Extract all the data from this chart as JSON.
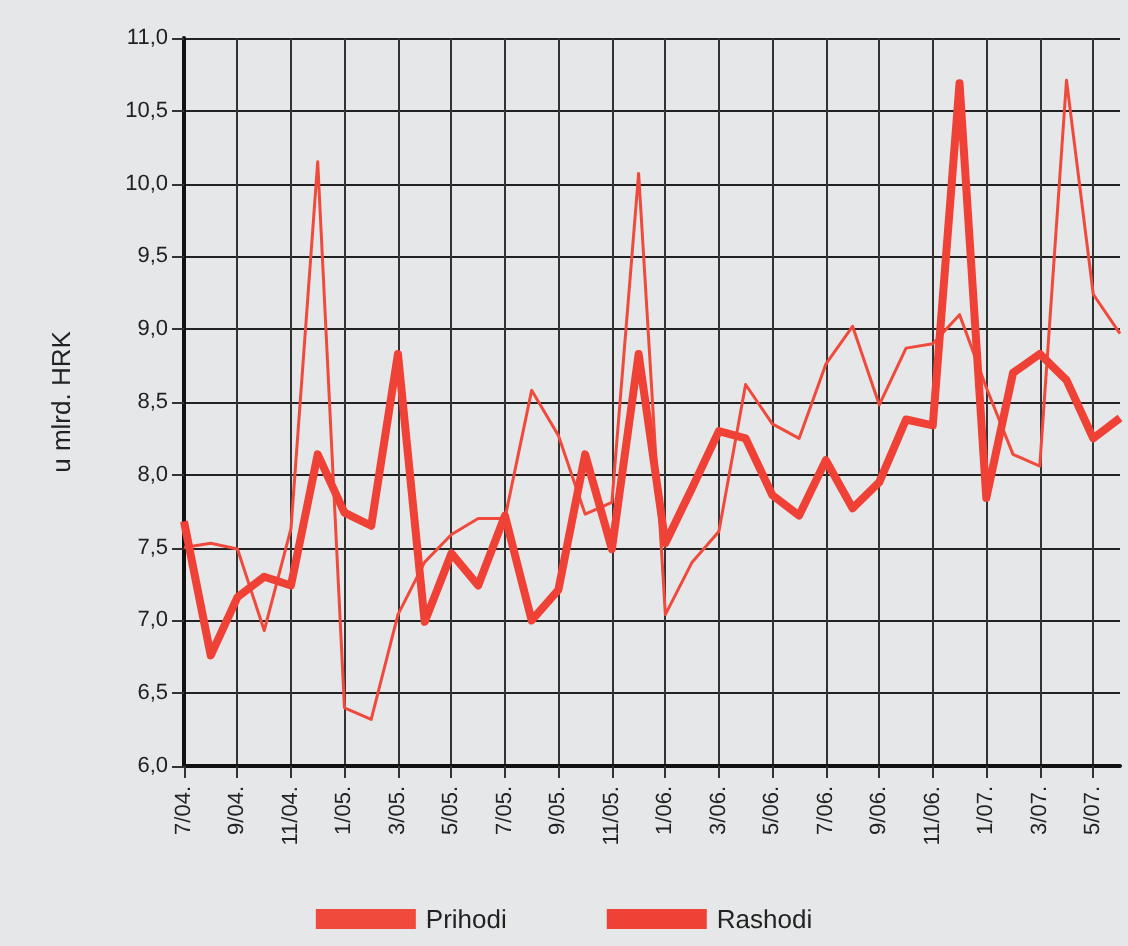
{
  "chart_data": {
    "type": "line",
    "ylabel": "u mlrd. HRK",
    "categories": [
      "7/04.",
      null,
      "9/04.",
      null,
      "11/04.",
      null,
      "1/05.",
      null,
      "3/05.",
      null,
      "5/05.",
      null,
      "7/05.",
      null,
      "9/05.",
      null,
      "11/05.",
      null,
      "1/06.",
      null,
      "3/06.",
      null,
      "5/06.",
      null,
      "7/06.",
      null,
      "9/06.",
      null,
      "11/06.",
      null,
      "1/07.",
      null,
      "3/07.",
      null,
      "5/07.",
      null
    ],
    "series": [
      {
        "name": "Prihodi",
        "color": "#f04a3c",
        "values": [
          7.5,
          7.53,
          7.49,
          6.93,
          7.63,
          10.15,
          6.4,
          6.32,
          7.04,
          7.4,
          7.59,
          7.7,
          7.7,
          8.58,
          8.27,
          7.73,
          7.81,
          10.07,
          7.04,
          7.4,
          7.61,
          8.62,
          8.35,
          8.25,
          8.76,
          9.02,
          8.48,
          8.87,
          8.9,
          9.1,
          8.6,
          8.14,
          8.06,
          10.71,
          9.24,
          8.97
        ]
      },
      {
        "name": "Rashodi",
        "color": "#ef4136",
        "values": [
          7.68,
          6.76,
          7.16,
          7.3,
          7.24,
          8.14,
          7.74,
          7.65,
          8.83,
          6.99,
          7.46,
          7.24,
          7.72,
          7.0,
          7.21,
          8.14,
          7.49,
          8.83,
          7.53,
          7.91,
          8.3,
          8.25,
          7.86,
          7.72,
          8.1,
          7.77,
          7.95,
          8.38,
          8.34,
          10.69,
          7.84,
          8.7,
          8.83,
          8.65,
          8.25,
          8.39
        ]
      }
    ],
    "ylim": [
      6,
      11
    ],
    "yticks": [
      {
        "value": 6,
        "label": "6,0"
      },
      {
        "value": 6.5,
        "label": "6,5"
      },
      {
        "value": 7,
        "label": "7,0"
      },
      {
        "value": 7.5,
        "label": "7,5"
      },
      {
        "value": 8,
        "label": "8,0"
      },
      {
        "value": 8.5,
        "label": "8,5"
      },
      {
        "value": 9,
        "label": "9,0"
      },
      {
        "value": 9.5,
        "label": "9,5"
      },
      {
        "value": 10,
        "label": "10,0"
      },
      {
        "value": 10.5,
        "label": "10,5"
      },
      {
        "value": 11,
        "label": "11,0"
      }
    ],
    "grid": true,
    "legend": "bottom",
    "marker": "none",
    "line_style": "solid"
  }
}
